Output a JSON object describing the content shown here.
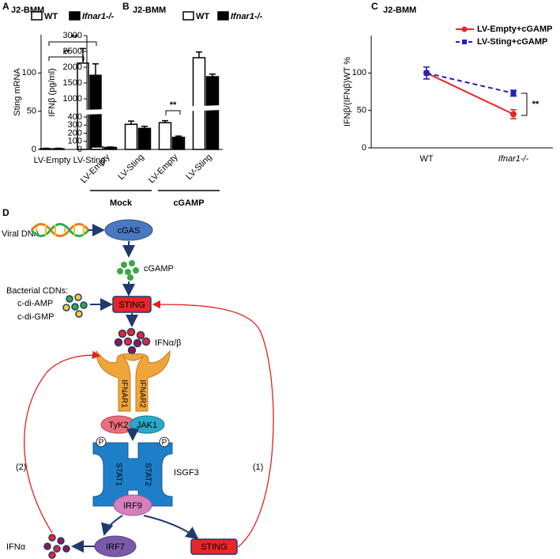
{
  "chart_data": [
    {
      "type": "bar",
      "panel": "A",
      "title": "J2-BMM",
      "ylabel": "Sting mRNA",
      "categories": [
        "LV-Empty",
        "LV-Sting"
      ],
      "series": [
        {
          "name": "WT",
          "color": "#ffffff",
          "values": [
            1,
            113
          ],
          "errors": [
            0.5,
            19
          ]
        },
        {
          "name": "Ifnar1-/-",
          "color": "#000000",
          "values": [
            1,
            97
          ],
          "errors": [
            0.5,
            15
          ]
        }
      ],
      "ylim": [
        0,
        150
      ],
      "yticks": [
        0,
        50,
        100
      ],
      "annotations": [
        "**",
        "**"
      ]
    },
    {
      "type": "bar",
      "panel": "B",
      "title": "J2-BMM",
      "ylabel": "IFNβ (pg/ml)",
      "categories": [
        "LV-Empty",
        "LV-Sting",
        "LV-Empty",
        "LV-Sting"
      ],
      "groups": [
        "Mock",
        "cGAMP"
      ],
      "series": [
        {
          "name": "WT",
          "color": "#ffffff",
          "values": [
            30,
            310,
            330,
            2300
          ],
          "errors": [
            8,
            40,
            25,
            180
          ]
        },
        {
          "name": "Ifnar1-/-",
          "color": "#000000",
          "values": [
            25,
            260,
            150,
            1700
          ],
          "errors": [
            6,
            25,
            15,
            80
          ]
        }
      ],
      "ylim": [
        0,
        3000
      ],
      "axis_break": [
        400,
        1000
      ],
      "yticks": [
        0,
        100,
        200,
        300,
        400,
        1000,
        1500,
        2000,
        2500,
        3000
      ],
      "annotations": [
        "**"
      ]
    },
    {
      "type": "line",
      "panel": "C",
      "title": "J2-BMM",
      "ylabel": "IFNβ/(IFNβ)WT %",
      "categories": [
        "WT",
        "Ifnar1-/-"
      ],
      "series": [
        {
          "name": "LV-Empty+cGAMP",
          "color": "#e8262a",
          "dashed": false,
          "values": [
            100,
            45
          ],
          "errors": [
            8,
            6
          ]
        },
        {
          "name": "LV-Sting+cGAMP",
          "color": "#2222b8",
          "dashed": true,
          "values": [
            100,
            73
          ],
          "errors": [
            8,
            4
          ]
        }
      ],
      "ylim": [
        0,
        150
      ],
      "yticks": [
        0,
        50,
        100
      ],
      "annotations": [
        "**"
      ]
    }
  ],
  "diagram": {
    "panel": "D",
    "viral_dna": "Viral DNA",
    "cgas": "cGAS",
    "cgamp": "cGAMP",
    "bacterial_cdns": "Bacterial CDNs:",
    "c_di_amp": "c-di-AMP",
    "c_di_gmp": "c-di-GMP",
    "sting_top": "STING",
    "ifn_ab": "IFNα/β",
    "ifnar1": "IFNAR1",
    "ifnar2": "IFNAR2",
    "tyk2": "TyK2",
    "jak1": "JAK1",
    "p_left": "P",
    "p_right": "P",
    "stat1": "STAT1",
    "stat2": "STAT2",
    "isgf3": "ISGF3",
    "irf9": "IRF9",
    "irf7": "IRF7",
    "sting_bottom": "STING",
    "ifn_a": "IFNα",
    "loop_2": "(2)",
    "loop_1": "(1)"
  }
}
